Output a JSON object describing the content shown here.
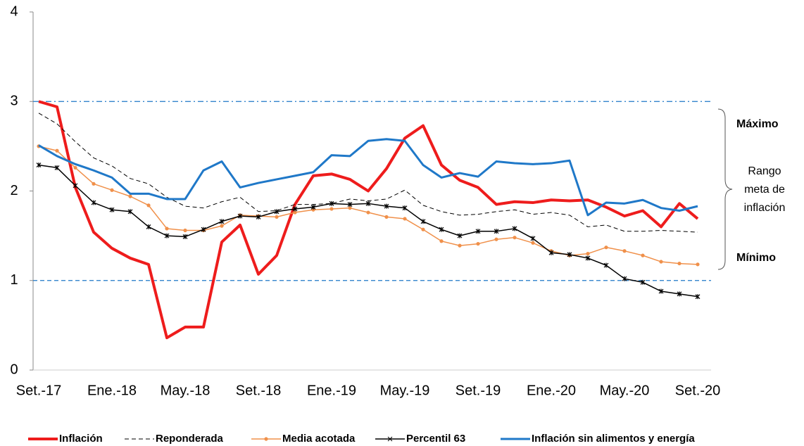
{
  "chart_data": {
    "type": "line",
    "categories": [
      "Set.-17",
      null,
      null,
      null,
      "Ene.-18",
      null,
      null,
      null,
      "May.-18",
      null,
      null,
      null,
      "Set.-18",
      null,
      null,
      null,
      "Ene.-19",
      null,
      null,
      null,
      "May.-19",
      null,
      null,
      null,
      "Set.-19",
      null,
      null,
      null,
      "Ene.-20",
      null,
      null,
      null,
      "May.-20",
      null,
      null,
      null,
      "Set.-20"
    ],
    "ylim": [
      0,
      4
    ],
    "yticks": [
      0,
      1,
      2,
      3,
      4
    ],
    "grid": false,
    "series": [
      {
        "name": "Inflación",
        "color": "#ee1c1c",
        "width": 4,
        "style": "solid",
        "marker": "none",
        "values": [
          3.0,
          2.94,
          2.04,
          1.54,
          1.36,
          1.25,
          1.18,
          0.36,
          0.48,
          0.48,
          1.43,
          1.62,
          1.07,
          1.28,
          1.85,
          2.17,
          2.19,
          2.13,
          2.0,
          2.25,
          2.59,
          2.73,
          2.29,
          2.12,
          2.04,
          1.85,
          1.88,
          1.87,
          1.9,
          1.89,
          1.9,
          1.82,
          1.72,
          1.78,
          1.6,
          1.86,
          1.69
        ]
      },
      {
        "name": "Reponderada",
        "color": "#000000",
        "width": 1,
        "style": "dashed",
        "marker": "none",
        "values": [
          2.87,
          2.75,
          2.55,
          2.37,
          2.28,
          2.14,
          2.08,
          1.93,
          1.83,
          1.81,
          1.88,
          1.93,
          1.77,
          1.78,
          1.85,
          1.85,
          1.86,
          1.91,
          1.89,
          1.91,
          2.01,
          1.84,
          1.77,
          1.73,
          1.74,
          1.77,
          1.79,
          1.74,
          1.76,
          1.73,
          1.6,
          1.62,
          1.55,
          1.55,
          1.56,
          1.55,
          1.54
        ]
      },
      {
        "name": "Media acotada",
        "color": "#f0904a",
        "width": 1.5,
        "style": "solid",
        "marker": "dot",
        "values": [
          2.5,
          2.45,
          2.26,
          2.08,
          2.01,
          1.94,
          1.84,
          1.58,
          1.56,
          1.56,
          1.61,
          1.73,
          1.72,
          1.71,
          1.76,
          1.79,
          1.8,
          1.81,
          1.76,
          1.71,
          1.69,
          1.57,
          1.44,
          1.39,
          1.41,
          1.46,
          1.48,
          1.42,
          1.33,
          1.28,
          1.3,
          1.37,
          1.33,
          1.28,
          1.21,
          1.19,
          1.18
        ]
      },
      {
        "name": "Percentil 63",
        "color": "#000000",
        "width": 1.5,
        "style": "solid",
        "marker": "star",
        "values": [
          2.29,
          2.26,
          2.06,
          1.87,
          1.79,
          1.77,
          1.6,
          1.5,
          1.49,
          1.57,
          1.66,
          1.72,
          1.71,
          1.77,
          1.8,
          1.82,
          1.86,
          1.85,
          1.86,
          1.83,
          1.81,
          1.66,
          1.57,
          1.5,
          1.55,
          1.55,
          1.58,
          1.47,
          1.31,
          1.29,
          1.25,
          1.17,
          1.02,
          0.98,
          0.88,
          0.85,
          0.82
        ]
      },
      {
        "name": "Inflación sin alimentos y energía",
        "color": "#1f78c8",
        "width": 3,
        "style": "solid",
        "marker": "none",
        "values": [
          2.51,
          2.39,
          2.3,
          2.23,
          2.15,
          1.97,
          1.97,
          1.91,
          1.91,
          2.23,
          2.33,
          2.04,
          2.09,
          2.13,
          2.17,
          2.21,
          2.4,
          2.39,
          2.56,
          2.58,
          2.56,
          2.29,
          2.15,
          2.2,
          2.16,
          2.33,
          2.31,
          2.3,
          2.31,
          2.34,
          1.73,
          1.87,
          1.86,
          1.9,
          1.81,
          1.78,
          1.83
        ]
      }
    ],
    "reference_lines": [
      {
        "value": 3,
        "color": "#1f78c8",
        "style": "dashdot"
      },
      {
        "value": 1,
        "color": "#1f78c8",
        "style": "dashed"
      }
    ],
    "annotations": {
      "max": "Máximo",
      "range": [
        "Rango",
        "meta de",
        "inflación"
      ],
      "min": "Mínimo"
    },
    "legend": "bottom"
  }
}
